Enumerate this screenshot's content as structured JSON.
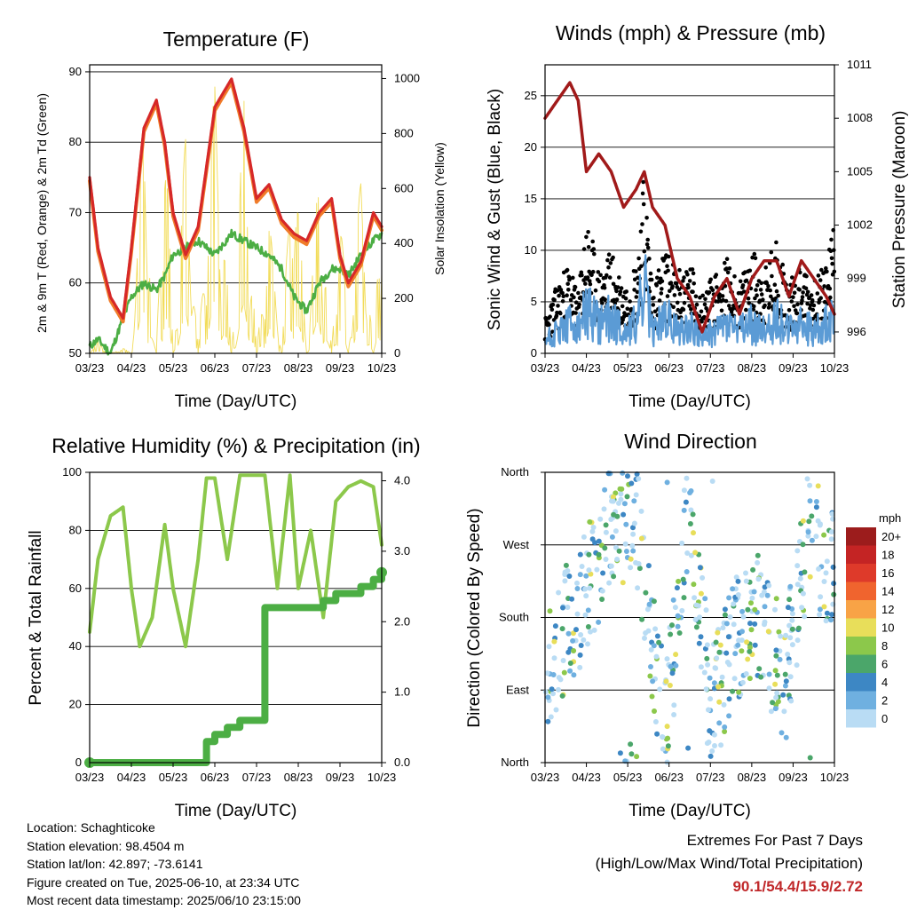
{
  "colors": {
    "temp_2m": "#d62828",
    "temp_9m": "#f07c2a",
    "dewpoint": "#4cae44",
    "solar": "#f2dc5a",
    "wind": "#5b9bd5",
    "gust": "#000000",
    "pressure": "#a11a1a",
    "rh": "#8cc84b",
    "rain": "#4cae44",
    "extremes_value": "#c0282a"
  },
  "chart_data": [
    {
      "id": "temperature",
      "type": "line",
      "title": "Temperature (F)",
      "xlabel": "Time (Day/UTC)",
      "ylabel": "2m & 9m T (Red, Orange) & 2m Td (Green)",
      "y2label": "Solar Insolation (Yellow)",
      "x_ticks": [
        "03/23",
        "04/23",
        "05/23",
        "06/23",
        "07/23",
        "08/23",
        "09/23",
        "10/23"
      ],
      "ylim": [
        50,
        91
      ],
      "y_ticks": [
        50,
        60,
        70,
        80,
        90
      ],
      "y2lim": [
        0,
        1050
      ],
      "y2_ticks": [
        0,
        200,
        400,
        600,
        800,
        1000
      ],
      "grid": true,
      "x": [
        0,
        0.2,
        0.5,
        0.8,
        1,
        1.3,
        1.6,
        1.8,
        2,
        2.3,
        2.6,
        3,
        3.4,
        3.7,
        4,
        4.3,
        4.6,
        4.9,
        5.2,
        5.5,
        5.8,
        6,
        6.2,
        6.5,
        6.8,
        7
      ],
      "series": [
        {
          "name": "2m T",
          "values": [
            75,
            65,
            58,
            55,
            65,
            82,
            86,
            80,
            70,
            64,
            68,
            85,
            89,
            82,
            72,
            74,
            69,
            67,
            66,
            70,
            72,
            64,
            60,
            63,
            70,
            68
          ]
        },
        {
          "name": "2m Td",
          "values": [
            51,
            52,
            50,
            55,
            58,
            60,
            59,
            61,
            64,
            65,
            66,
            64,
            67,
            66,
            65,
            64,
            62,
            58,
            56,
            60,
            62,
            62,
            61,
            64,
            66,
            67
          ]
        },
        {
          "name": "Solar",
          "values": [
            0,
            50,
            0,
            20,
            0,
            900,
            0,
            950,
            0,
            800,
            0,
            1000,
            0,
            950,
            0,
            500,
            0,
            850,
            0,
            700,
            0,
            600,
            0,
            650,
            0,
            700
          ]
        }
      ]
    },
    {
      "id": "winds",
      "type": "line",
      "title": "Winds (mph) & Pressure (mb)",
      "xlabel": "Time (Day/UTC)",
      "ylabel": "Sonic Wind & Gust (Blue, Black)",
      "y2label": "Station Pressure (Maroon)",
      "x_ticks": [
        "03/23",
        "04/23",
        "05/23",
        "06/23",
        "07/23",
        "08/23",
        "09/23",
        "10/23"
      ],
      "ylim": [
        0,
        28
      ],
      "y_ticks": [
        0,
        5,
        10,
        15,
        20,
        25
      ],
      "y2lim": [
        994.8,
        1011
      ],
      "y2_ticks": [
        996,
        999,
        1002,
        1005,
        1008,
        1011
      ],
      "grid": true,
      "x": [
        0,
        0.3,
        0.6,
        0.8,
        1,
        1.3,
        1.6,
        1.9,
        2.2,
        2.4,
        2.6,
        2.9,
        3.2,
        3.5,
        3.8,
        4.1,
        4.4,
        4.7,
        5,
        5.3,
        5.6,
        5.9,
        6.2,
        6.5,
        6.8,
        7
      ],
      "series": [
        {
          "name": "Wind",
          "values": [
            2,
            3,
            4,
            3,
            6,
            4,
            5,
            3,
            4,
            9,
            3,
            5,
            3,
            4,
            2,
            3,
            4,
            3,
            4,
            3,
            5,
            3,
            4,
            3,
            4,
            6
          ]
        },
        {
          "name": "Gust",
          "values": [
            3,
            6,
            8,
            5,
            12,
            7,
            9,
            6,
            8,
            16,
            6,
            9,
            7,
            8,
            5,
            7,
            8,
            6,
            9,
            7,
            10,
            6,
            8,
            6,
            8,
            12
          ]
        },
        {
          "name": "Pressure",
          "values": [
            1008,
            1009,
            1010,
            1009,
            1005,
            1006,
            1005,
            1003,
            1004,
            1005,
            1003,
            1002,
            999,
            998,
            996,
            998,
            999,
            997,
            999,
            1000,
            1000,
            998,
            1000,
            999,
            998,
            997
          ]
        }
      ]
    },
    {
      "id": "rh_precip",
      "type": "line",
      "title": "Relative Humidity (%) & Precipitation (in)",
      "xlabel": "Time (Day/UTC)",
      "ylabel": "Percent & Total Rainfall",
      "x_ticks": [
        "03/23",
        "04/23",
        "05/23",
        "06/23",
        "07/23",
        "08/23",
        "09/23",
        "10/23"
      ],
      "ylim": [
        0,
        100
      ],
      "y_ticks": [
        0,
        20,
        40,
        60,
        80,
        100
      ],
      "y2lim": [
        0,
        4.12
      ],
      "y2_ticks": [
        "0.0",
        "1.0",
        "2.0",
        "3.0",
        "4.0"
      ],
      "grid": true,
      "x": [
        0,
        0.2,
        0.5,
        0.8,
        1,
        1.2,
        1.5,
        1.8,
        2,
        2.3,
        2.6,
        2.8,
        3,
        3.3,
        3.6,
        3.9,
        4.2,
        4.5,
        4.8,
        5,
        5.3,
        5.6,
        5.9,
        6.2,
        6.5,
        6.8,
        7
      ],
      "series": [
        {
          "name": "RH",
          "values": [
            45,
            70,
            85,
            88,
            60,
            40,
            50,
            82,
            60,
            40,
            70,
            98,
            98,
            70,
            99,
            99,
            99,
            60,
            99,
            60,
            80,
            50,
            90,
            95,
            97,
            95,
            75
          ]
        },
        {
          "name": "Total Rainfall",
          "values": [
            0,
            0,
            0,
            0,
            0,
            0,
            0,
            0,
            0,
            0,
            0,
            0.3,
            0.4,
            0.5,
            0.6,
            0.6,
            2.2,
            2.2,
            2.2,
            2.2,
            2.2,
            2.3,
            2.4,
            2.4,
            2.5,
            2.6,
            2.7
          ]
        }
      ]
    },
    {
      "id": "wind_direction",
      "type": "scatter",
      "title": "Wind Direction",
      "xlabel": "Time (Day/UTC)",
      "ylabel": "Direction (Colored By Speed)",
      "x_ticks": [
        "03/23",
        "04/23",
        "05/23",
        "06/23",
        "07/23",
        "08/23",
        "09/23",
        "10/23"
      ],
      "y_ticks": [
        "North",
        "East",
        "South",
        "West",
        "North"
      ],
      "ylim": [
        0,
        360
      ],
      "grid": true,
      "legend": {
        "title": "mph",
        "labels": [
          "20+",
          "18",
          "16",
          "14",
          "12",
          "10",
          "8",
          "6",
          "4",
          "2",
          "0"
        ],
        "colors": [
          "#9c1c1c",
          "#c42424",
          "#de3a2a",
          "#f0642e",
          "#f8a346",
          "#e8de5a",
          "#8cc84b",
          "#4ba66a",
          "#3d87c4",
          "#6fb0e0",
          "#b9dcf4"
        ]
      }
    }
  ],
  "info": {
    "location": "Location: Schaghticoke",
    "elevation": "Station elevation: 98.4504 m",
    "latlon": "Station lat/lon: 42.897; -73.6141",
    "created": "Figure created on Tue, 2025-06-10, at 23:34 UTC",
    "recent": "Most recent data timestamp: 2025/06/10 23:15:00"
  },
  "extremes": {
    "title": "Extremes For Past 7 Days",
    "subtitle": "(High/Low/Max Wind/Total Precipitation)",
    "values": "90.1/54.4/15.9/2.72"
  }
}
